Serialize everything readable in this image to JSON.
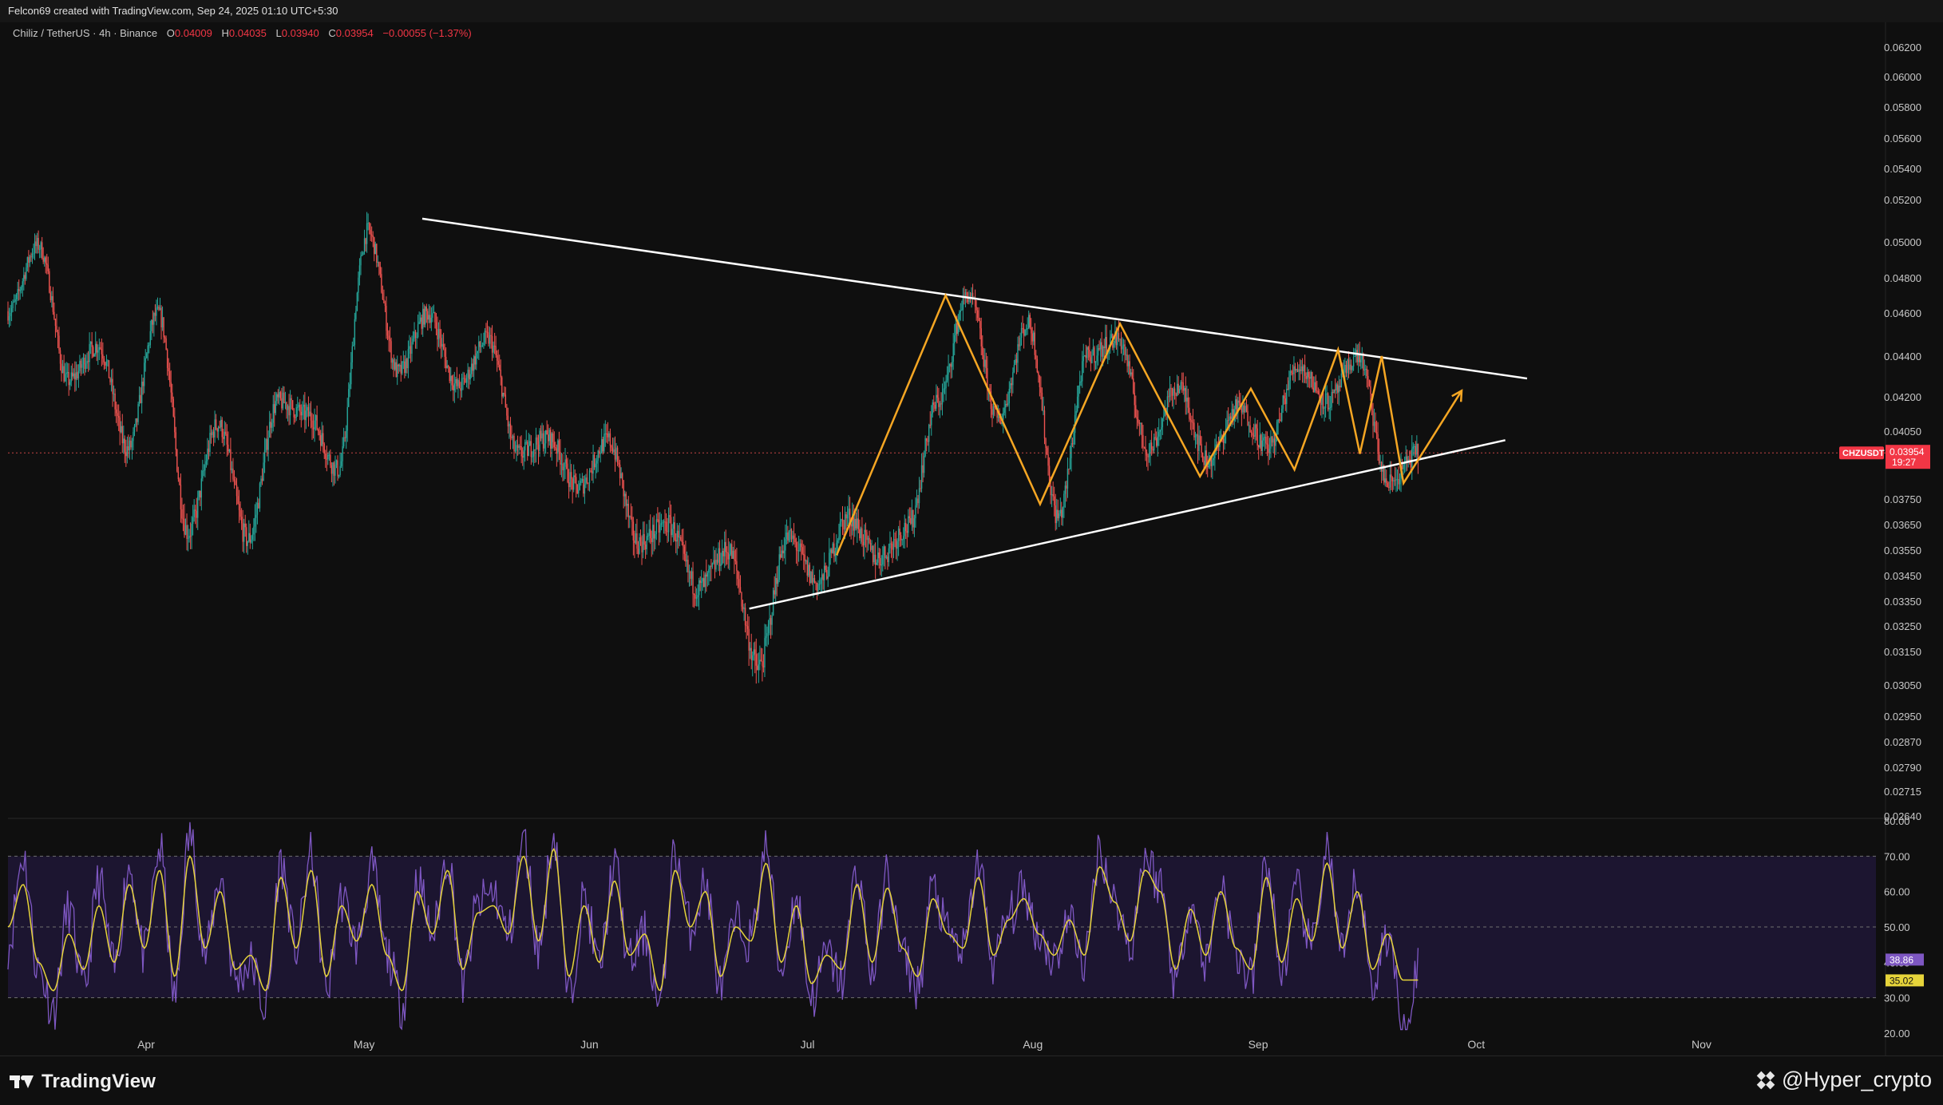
{
  "header": {
    "attribution": "Felcon69 created with TradingView.com, Sep 24, 2025 01:10 UTC+5:30"
  },
  "legend": {
    "symbol": "Chiliz / TetherUS · 4h · Binance",
    "open_label": "O",
    "open": "0.04009",
    "high_label": "H",
    "high": "0.04035",
    "low_label": "L",
    "low": "0.03940",
    "close_label": "C",
    "close": "0.03954",
    "change": "−0.00055 (−1.37%)"
  },
  "chart_data": {
    "type": "candlestick",
    "price_axis_ticks": [
      "0.06200",
      "0.06000",
      "0.05800",
      "0.05600",
      "0.05400",
      "0.05200",
      "0.05000",
      "0.04800",
      "0.04600",
      "0.04400",
      "0.04200",
      "0.04050",
      "0.03750",
      "0.03650",
      "0.03550",
      "0.03450",
      "0.03350",
      "0.03250",
      "0.03150",
      "0.03050",
      "0.02950",
      "0.02870",
      "0.02790",
      "0.02715",
      "0.02640"
    ],
    "price_axis_values": [
      0.062,
      0.06,
      0.058,
      0.056,
      0.054,
      0.052,
      0.05,
      0.048,
      0.046,
      0.044,
      0.042,
      0.0405,
      0.0375,
      0.0365,
      0.0355,
      0.0345,
      0.0335,
      0.0325,
      0.0315,
      0.0305,
      0.0295,
      0.0287,
      0.0279,
      0.02715,
      0.0264
    ],
    "time_axis_labels": [
      "Apr",
      "May",
      "Jun",
      "Jul",
      "Aug",
      "Sep",
      "Oct",
      "Nov"
    ],
    "last_price_badge": {
      "symbol": "CHZUSDT",
      "price": "0.03954",
      "countdown": "19:27"
    },
    "trendlines": [
      {
        "name": "upper-resistance",
        "from": {
          "date": "2025-05-09",
          "price": 0.0511
        },
        "to": {
          "date": "2025-10-08",
          "price": 0.0429
        }
      },
      {
        "name": "lower-support",
        "from": {
          "date": "2025-06-23",
          "price": 0.0332
        },
        "to": {
          "date": "2025-10-05",
          "price": 0.0401
        }
      }
    ],
    "zigzag_price_path": [
      0.0353,
      0.047,
      0.0373,
      0.0455,
      0.0385,
      0.0424,
      0.0388,
      0.0443,
      0.0395,
      0.044,
      0.0382,
      0.0423
    ],
    "candles_close_path": [
      0.0461,
      0.0498,
      0.0428,
      0.0445,
      0.0397,
      0.046,
      0.0362,
      0.0408,
      0.0359,
      0.0418,
      0.0412,
      0.0388,
      0.0505,
      0.0432,
      0.046,
      0.0425,
      0.0448,
      0.0395,
      0.0402,
      0.038,
      0.0401,
      0.0358,
      0.0365,
      0.034,
      0.0355,
      0.031,
      0.036,
      0.0342,
      0.0368,
      0.0352,
      0.0364,
      0.0418,
      0.047,
      0.041,
      0.0455,
      0.0368,
      0.044,
      0.0448,
      0.0397,
      0.0425,
      0.0392,
      0.0415,
      0.0398,
      0.0435,
      0.0418,
      0.044,
      0.0382,
      0.0395
    ],
    "rsi": {
      "axis_ticks": [
        "80.00",
        "70.00",
        "60.00",
        "50.00",
        "40.00",
        "30.00",
        "20.00"
      ],
      "axis_values": [
        80,
        70,
        60,
        50,
        40,
        30,
        20
      ],
      "band_upper": 70,
      "band_mid": 50,
      "band_lower": 30,
      "rsi_value": "38.86",
      "ma_value": "35.02",
      "rsi_path": [
        45,
        70,
        38,
        27,
        55,
        32,
        63,
        38,
        67,
        42,
        72,
        30,
        76,
        42,
        64,
        35,
        40,
        27,
        68,
        44,
        70,
        32,
        58,
        45,
        66,
        42,
        28,
        63,
        48,
        70,
        34,
        56,
        60,
        48,
        74,
        44,
        76,
        30,
        58,
        39,
        67,
        40,
        48,
        27,
        71,
        50,
        62,
        33,
        51,
        46,
        72,
        38,
        58,
        30,
        42,
        35,
        66,
        37,
        65,
        42,
        33,
        61,
        48,
        43,
        68,
        40,
        53,
        60,
        48,
        41,
        52,
        40,
        72,
        57,
        45,
        70,
        62,
        35,
        57,
        40,
        63,
        42,
        35,
        68,
        37,
        60,
        44,
        72,
        41,
        63,
        34,
        48,
        22,
        38
      ],
      "ma_path": [
        50,
        62,
        40,
        32,
        48,
        38,
        56,
        40,
        62,
        44,
        66,
        36,
        70,
        44,
        60,
        38,
        42,
        32,
        64,
        44,
        66,
        36,
        56,
        46,
        62,
        42,
        32,
        60,
        48,
        66,
        38,
        54,
        56,
        48,
        70,
        46,
        72,
        36,
        56,
        40,
        63,
        42,
        48,
        32,
        66,
        50,
        60,
        36,
        50,
        46,
        68,
        40,
        56,
        34,
        42,
        38,
        62,
        40,
        61,
        44,
        36,
        58,
        48,
        44,
        64,
        42,
        52,
        58,
        48,
        42,
        52,
        42,
        67,
        57,
        46,
        66,
        60,
        38,
        55,
        42,
        60,
        44,
        38,
        64,
        40,
        58,
        46,
        68,
        44,
        60,
        38,
        48,
        35,
        35
      ]
    }
  },
  "footer": {
    "logo_text": "TradingView",
    "watermark": "@Hyper_crypto"
  },
  "colors": {
    "background": "#0f0f0f",
    "candle_up": "#26a69a",
    "candle_down": "#ef5350",
    "trendline": "#ffffff",
    "zigzag": "#f5a623",
    "rsi_line": "#7e57c2",
    "rsi_ma": "#e6d43a",
    "rsi_band": "#1c1530",
    "price_badge": "#f23645"
  }
}
